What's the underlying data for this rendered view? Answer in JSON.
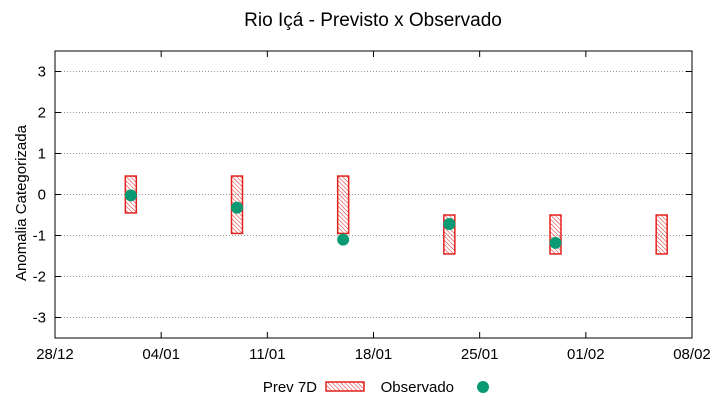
{
  "chart_data": {
    "type": "range-bar-with-scatter",
    "title": "Rio Içá - Previsto x Observado",
    "xlabel": "",
    "ylabel": "Anomalia Categorizada",
    "x_tick_labels": [
      "28/12",
      "04/01",
      "11/01",
      "18/01",
      "25/01",
      "01/02",
      "08/02"
    ],
    "x_tick_days": [
      0,
      7,
      14,
      21,
      28,
      35,
      42
    ],
    "xlim_days": [
      0,
      42
    ],
    "x_origin_label": "28/12",
    "y_ticks": [
      3,
      2,
      1,
      0,
      -1,
      -2,
      -3
    ],
    "y_tick_labels": [
      "3",
      "2",
      "1",
      "0",
      "-1",
      "-2",
      "-3"
    ],
    "ylim": [
      -3.5,
      3.5
    ],
    "grid": true,
    "legend_position": "bottom-center",
    "series": [
      {
        "name": "Prev 7D",
        "style": "hatched-red-range",
        "color": "#e0221f",
        "points": [
          {
            "day": 5,
            "low": -0.45,
            "high": 0.45
          },
          {
            "day": 12,
            "low": -0.95,
            "high": 0.45
          },
          {
            "day": 19,
            "low": -0.95,
            "high": 0.45
          },
          {
            "day": 26,
            "low": -1.45,
            "high": -0.5
          },
          {
            "day": 33,
            "low": -1.45,
            "high": -0.5
          },
          {
            "day": 40,
            "low": -1.45,
            "high": -0.5
          }
        ]
      },
      {
        "name": "Observado",
        "style": "filled-circle",
        "color": "#0a9a73",
        "points": [
          {
            "day": 5,
            "value": -0.02
          },
          {
            "day": 12,
            "value": -0.32
          },
          {
            "day": 19,
            "value": -1.1
          },
          {
            "day": 26,
            "value": -0.72
          },
          {
            "day": 33,
            "value": -1.18
          }
        ]
      }
    ]
  }
}
